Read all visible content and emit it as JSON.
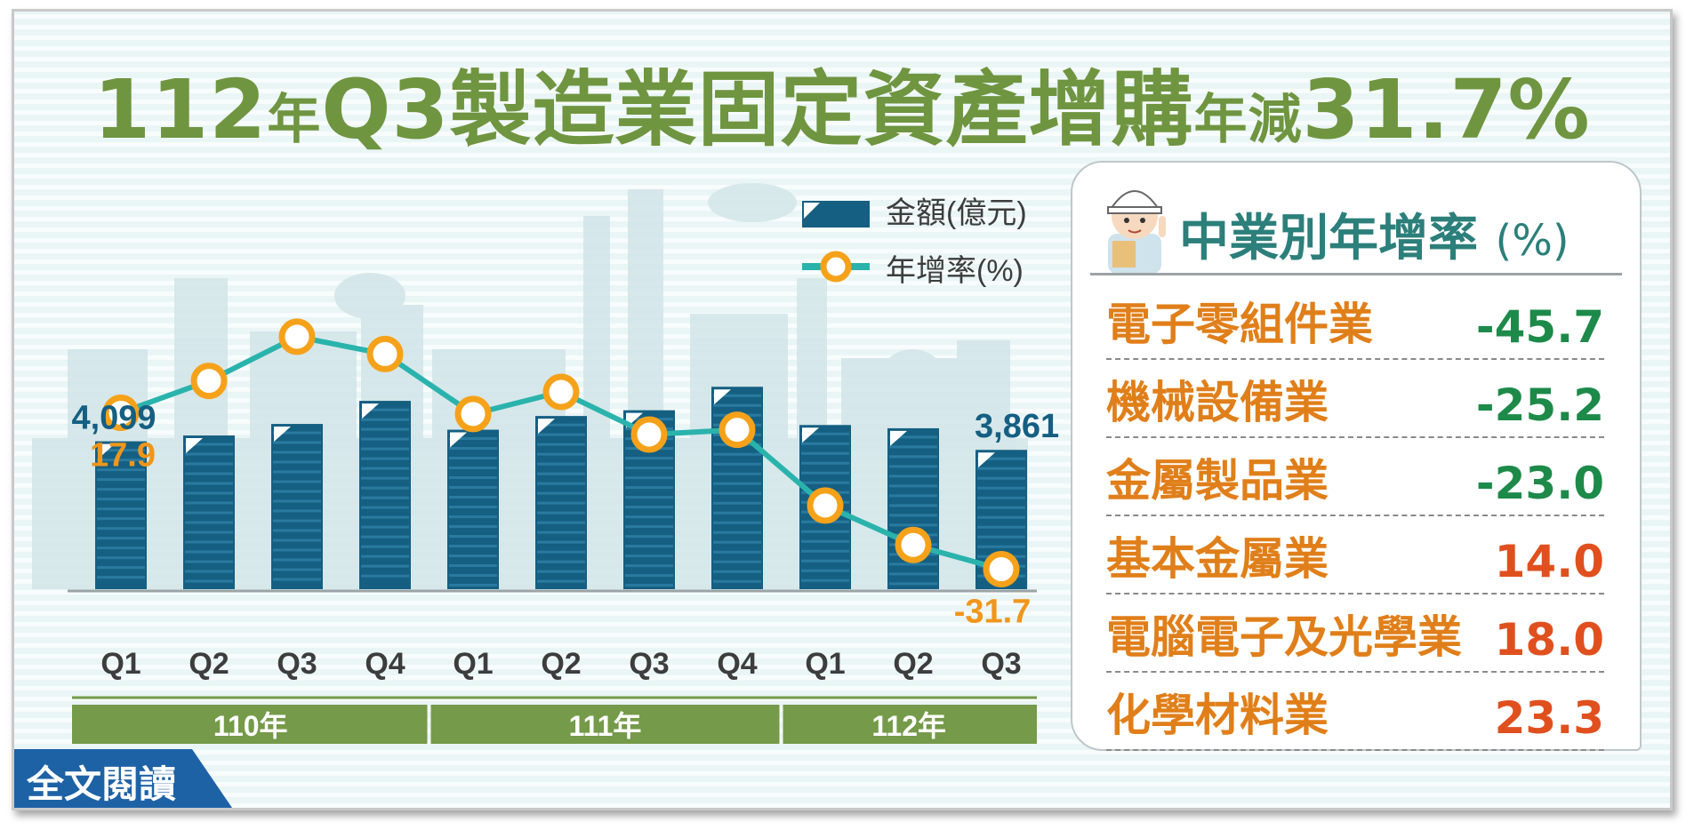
{
  "title": {
    "p1": "112",
    "p2": "年",
    "p3": "Q3製造業固定資產增購",
    "p4": "年減",
    "p5": "31.7%"
  },
  "legend": {
    "bar": "金額(億元)",
    "line": "年增率(%)"
  },
  "chart_data": {
    "type": "bar+line",
    "categories": [
      "Q1",
      "Q2",
      "Q3",
      "Q4",
      "Q1",
      "Q2",
      "Q3",
      "Q4",
      "Q1",
      "Q2",
      "Q3"
    ],
    "groups": [
      {
        "label": "110年",
        "count": 4
      },
      {
        "label": "111年",
        "count": 4
      },
      {
        "label": "112年",
        "count": 3
      }
    ],
    "series": [
      {
        "name": "金額(億元)",
        "kind": "bar",
        "values": [
          4099,
          4260,
          4580,
          5220,
          4420,
          4800,
          4960,
          5610,
          4550,
          4460,
          3861
        ]
      },
      {
        "name": "年增率(%)",
        "kind": "line",
        "values": [
          17.9,
          28.0,
          42.0,
          36.5,
          17.5,
          24.5,
          11.0,
          12.5,
          -11.5,
          -24.0,
          -31.7
        ]
      }
    ],
    "labels": {
      "bar_first": "4,099",
      "bar_last": "3,861",
      "line_first": "17.9",
      "line_last": "-31.7"
    },
    "colors": {
      "bar": "#155f82",
      "line": "#2ab3ac",
      "marker": "#f5a21a",
      "group_band": "#759a49"
    }
  },
  "panel": {
    "title": "中業別年增率",
    "unit": "(%)",
    "rows": [
      {
        "name": "電子零組件業",
        "value": "-45.7",
        "sign": "neg"
      },
      {
        "name": "機械設備業",
        "value": "-25.2",
        "sign": "neg"
      },
      {
        "name": "金屬製品業",
        "value": "-23.0",
        "sign": "neg"
      },
      {
        "name": "基本金屬業",
        "value": "14.0",
        "sign": "pos"
      },
      {
        "name": "電腦電子及光學業",
        "value": "18.0",
        "sign": "pos"
      },
      {
        "name": "化學材料業",
        "value": "23.3",
        "sign": "pos"
      }
    ]
  },
  "read_more": "全文閱讀"
}
